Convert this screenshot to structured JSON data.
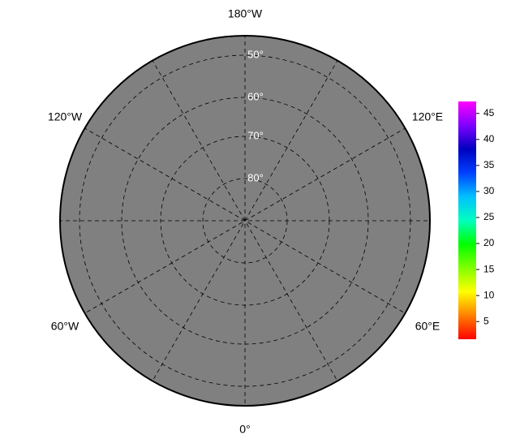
{
  "map": {
    "longitude_labels": [
      "180°W",
      "120°W",
      "120°E",
      "60°W",
      "60°E",
      "0°"
    ],
    "latitude_labels": [
      "50°",
      "60°",
      "70°",
      "80°"
    ],
    "colorbar": {
      "range": [
        1.6,
        47.3
      ],
      "ticks": [
        5,
        10,
        15,
        20,
        25,
        30,
        35,
        40,
        45
      ],
      "colors": [
        "#ff0000",
        "#ff8000",
        "#ffff00",
        "#80ff00",
        "#00ff00",
        "#00ffc0",
        "#00c0ff",
        "#0040ff",
        "#0000c0",
        "#8000ff",
        "#ff00ff"
      ]
    }
  }
}
